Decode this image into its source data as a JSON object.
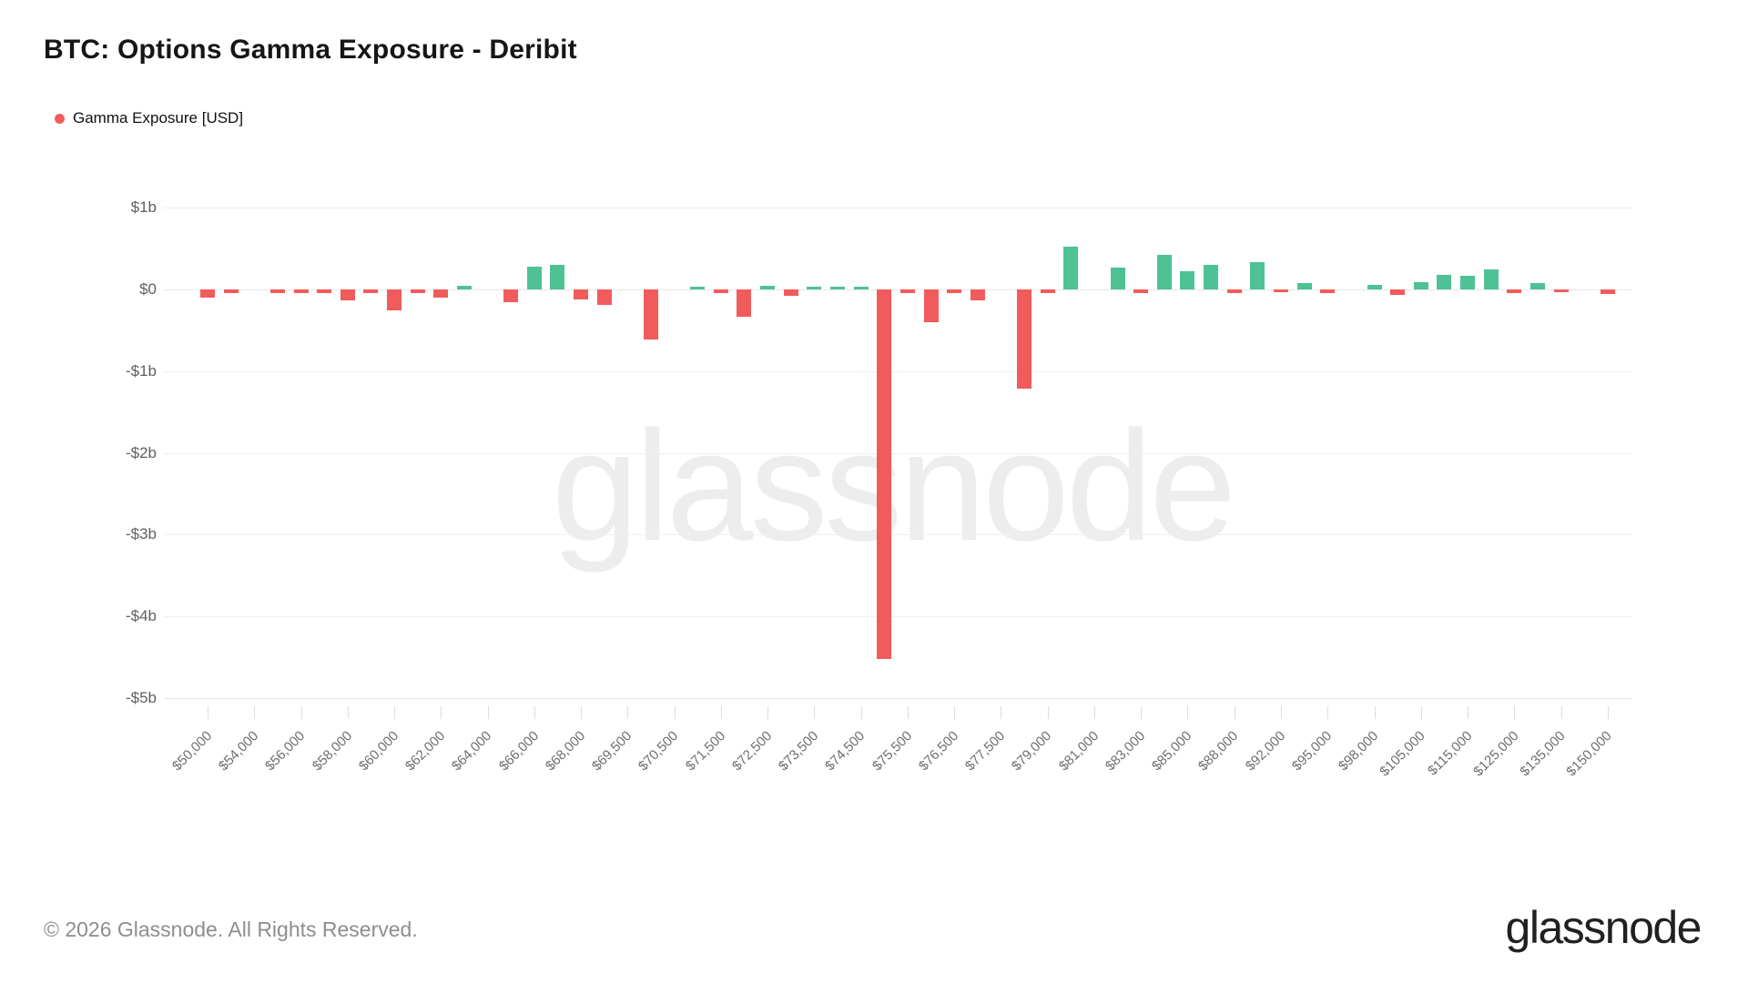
{
  "header": {
    "title": "BTC: Options Gamma Exposure - Deribit"
  },
  "legend": {
    "label": "Gamma Exposure [USD]",
    "dot_color": "#F15B5B"
  },
  "watermark": "glassnode",
  "footer": {
    "copyright": "© 2026 Glassnode. All Rights Reserved.",
    "brand": "glassnode"
  },
  "chart_data": {
    "type": "bar",
    "title": "BTC: Options Gamma Exposure - Deribit",
    "series_name": "Gamma Exposure [USD]",
    "unit": "USD (billions)",
    "ylim": [
      -5,
      1
    ],
    "grid": "horizontal",
    "legend_position": "top-left",
    "colors": {
      "positive": "#4EC295",
      "negative": "#F25B5B"
    },
    "y_ticks": [
      {
        "label": "$1b",
        "value": 1
      },
      {
        "label": "$0",
        "value": 0
      },
      {
        "label": "-$1b",
        "value": -1
      },
      {
        "label": "-$2b",
        "value": -2
      },
      {
        "label": "-$3b",
        "value": -3
      },
      {
        "label": "-$4b",
        "value": -4
      },
      {
        "label": "-$5b",
        "value": -5
      }
    ],
    "bars": [
      {
        "label": "$50,000",
        "value": -0.1
      },
      {
        "label": "",
        "value": -0.04
      },
      {
        "label": "$54,000",
        "value": 0
      },
      {
        "label": "",
        "value": -0.04
      },
      {
        "label": "$56,000",
        "value": -0.04
      },
      {
        "label": "",
        "value": -0.05
      },
      {
        "label": "$58,000",
        "value": -0.13
      },
      {
        "label": "",
        "value": -0.04
      },
      {
        "label": "$60,000",
        "value": -0.26
      },
      {
        "label": "",
        "value": -0.04
      },
      {
        "label": "$62,000",
        "value": -0.1
      },
      {
        "label": "",
        "value": 0.04
      },
      {
        "label": "$64,000",
        "value": 0
      },
      {
        "label": "",
        "value": -0.16
      },
      {
        "label": "$66,000",
        "value": 0.28
      },
      {
        "label": "",
        "value": 0.3
      },
      {
        "label": "$68,000",
        "value": -0.12
      },
      {
        "label": "",
        "value": -0.19
      },
      {
        "label": "$69,500",
        "value": 0
      },
      {
        "label": "",
        "value": -0.61
      },
      {
        "label": "$70,500",
        "value": 0
      },
      {
        "label": "",
        "value": 0.03
      },
      {
        "label": "$71,500",
        "value": -0.04
      },
      {
        "label": "",
        "value": -0.33
      },
      {
        "label": "$72,500",
        "value": 0.05
      },
      {
        "label": "",
        "value": -0.08
      },
      {
        "label": "$73,500",
        "value": 0.03
      },
      {
        "label": "",
        "value": 0.03
      },
      {
        "label": "$74,500",
        "value": 0.03
      },
      {
        "label": "",
        "value": -4.52
      },
      {
        "label": "$75,500",
        "value": -0.04
      },
      {
        "label": "",
        "value": -0.4
      },
      {
        "label": "$76,500",
        "value": -0.05
      },
      {
        "label": "",
        "value": -0.13
      },
      {
        "label": "$77,500",
        "value": 0
      },
      {
        "label": "",
        "value": -1.21
      },
      {
        "label": "$79,000",
        "value": -0.04
      },
      {
        "label": "",
        "value": 0.52
      },
      {
        "label": "$81,000",
        "value": 0
      },
      {
        "label": "",
        "value": 0.27
      },
      {
        "label": "$83,000",
        "value": -0.04
      },
      {
        "label": "",
        "value": 0.42
      },
      {
        "label": "$85,000",
        "value": 0.22
      },
      {
        "label": "",
        "value": 0.3
      },
      {
        "label": "$88,000",
        "value": -0.04
      },
      {
        "label": "",
        "value": 0.33
      },
      {
        "label": "$92,000",
        "value": -0.03
      },
      {
        "label": "",
        "value": 0.08
      },
      {
        "label": "$95,000",
        "value": -0.04
      },
      {
        "label": "",
        "value": 0
      },
      {
        "label": "$98,000",
        "value": 0.06
      },
      {
        "label": "",
        "value": -0.07
      },
      {
        "label": "$105,000",
        "value": 0.09
      },
      {
        "label": "",
        "value": 0.18
      },
      {
        "label": "$115,000",
        "value": 0.17
      },
      {
        "label": "",
        "value": 0.24
      },
      {
        "label": "$125,000",
        "value": -0.05
      },
      {
        "label": "",
        "value": 0.08
      },
      {
        "label": "$135,000",
        "value": -0.03
      },
      {
        "label": "",
        "value": 0
      },
      {
        "label": "$150,000",
        "value": -0.06
      }
    ]
  }
}
